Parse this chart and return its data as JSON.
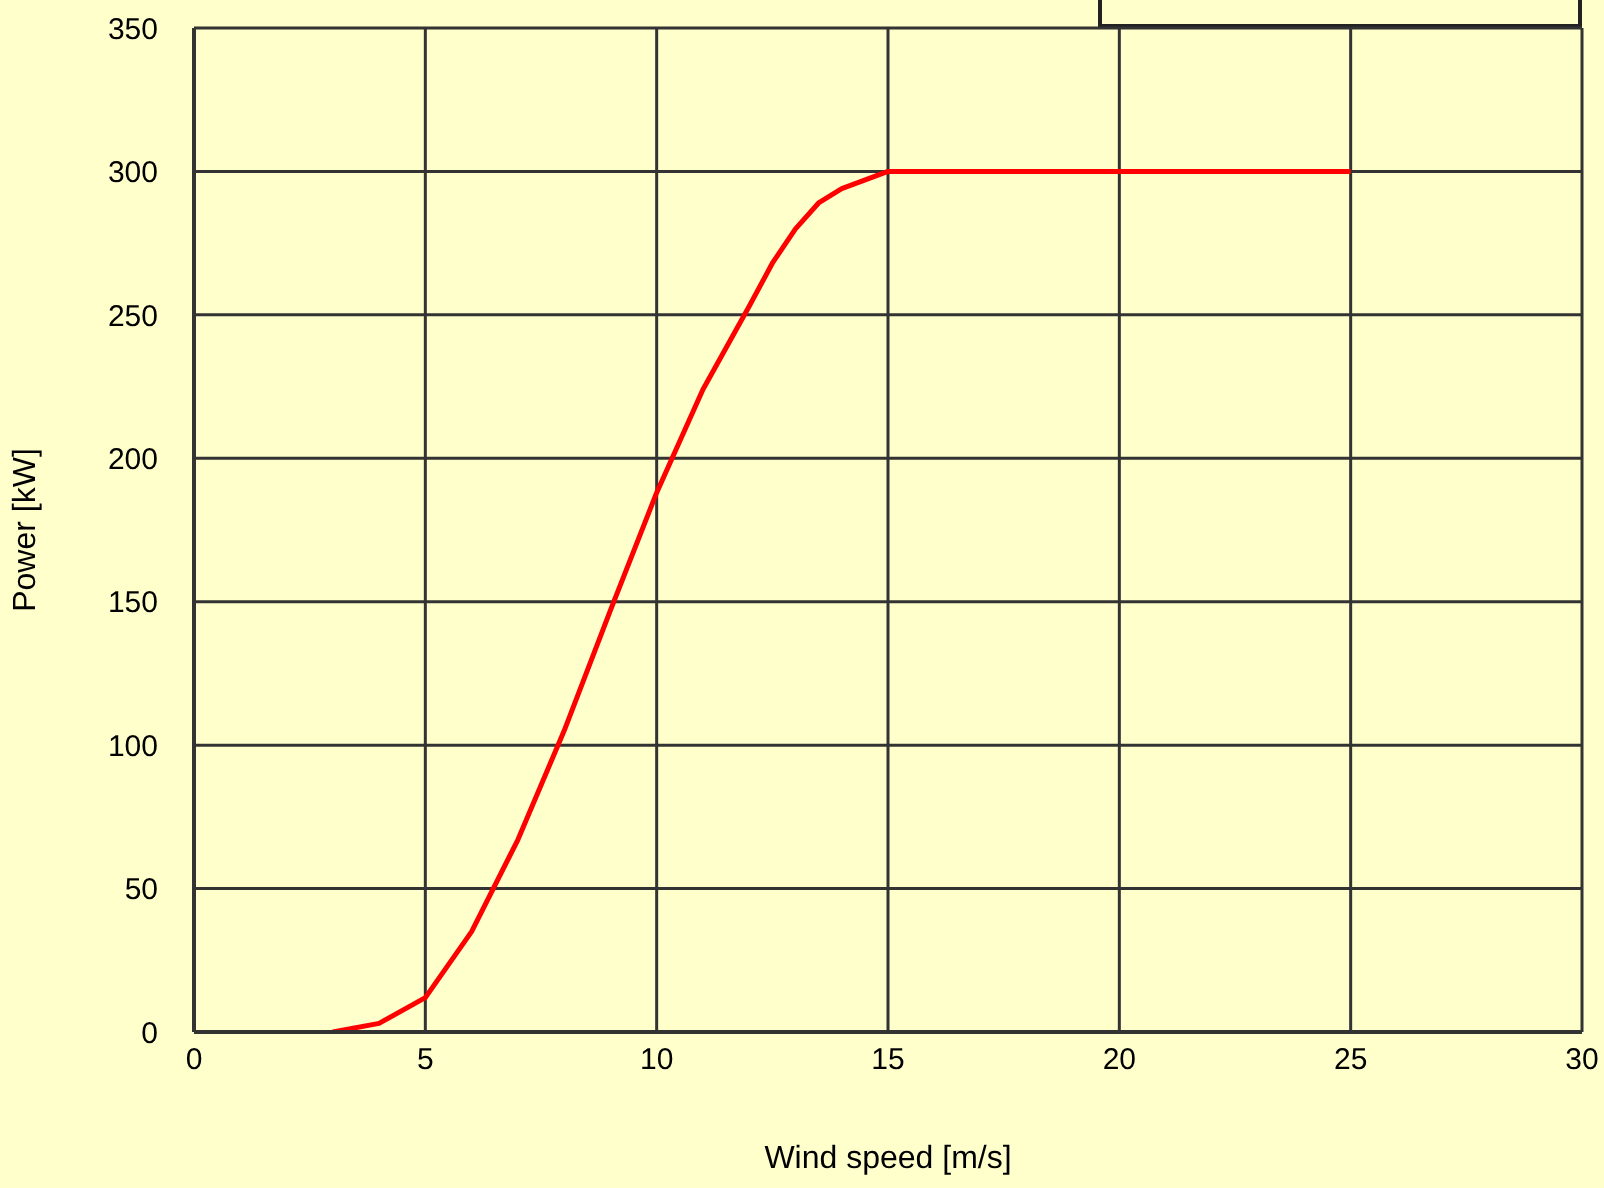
{
  "chart_data": {
    "type": "line",
    "xlabel": "Wind speed [m/s]",
    "ylabel": "Power [kW]",
    "x": [
      3,
      4,
      5,
      6,
      7,
      8,
      9,
      10,
      11,
      12,
      12.5,
      13,
      13.5,
      14,
      15,
      25
    ],
    "series": [
      {
        "color": "#ff0000",
        "values": [
          0,
          3,
          12,
          35,
          67,
          105,
          147,
          188,
          224,
          253,
          268,
          280,
          289,
          294,
          300,
          300
        ]
      }
    ],
    "xlim": [
      0,
      30
    ],
    "xticks": [
      0,
      5,
      10,
      15,
      20,
      25,
      30
    ],
    "ylim": [
      0,
      350
    ],
    "yticks": [
      0,
      50,
      100,
      150,
      200,
      250,
      300,
      350
    ],
    "grid": true,
    "marker": "none",
    "line_style": "solid"
  }
}
